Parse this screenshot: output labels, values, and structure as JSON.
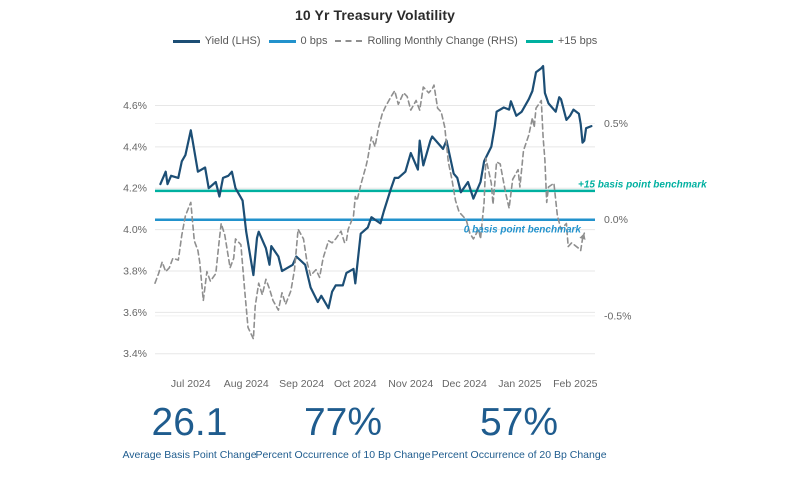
{
  "title": "10 Yr Treasury Volatility",
  "legend": {
    "items": [
      {
        "label": "Yield (LHS)",
        "color": "#1c4e75",
        "style": "solid"
      },
      {
        "label": "0 bps",
        "color": "#2292cc",
        "style": "solid"
      },
      {
        "label": "Rolling Monthly Change (RHS)",
        "color": "#8f8f8f",
        "style": "dashed"
      },
      {
        "label": "+15 bps",
        "color": "#00b0a0",
        "style": "solid"
      }
    ]
  },
  "annotations": {
    "plus15_label": "+15 basis point benchmark",
    "zero_label": "0 basis point benchmark"
  },
  "stats": [
    {
      "value": "26.1",
      "label": "Average Basis Point Change"
    },
    {
      "value": "77%",
      "label": "Percent Occurrence of 10 Bp Change"
    },
    {
      "value": "57%",
      "label": "Percent Occurrence of 20 Bp Change"
    }
  ],
  "colors": {
    "yield_line": "#1c4e75",
    "zero_bps_line": "#2292cc",
    "rolling_change_line": "#8f8f8f",
    "plus15_line": "#00b0a0",
    "stat_text": "#1f5c8e",
    "axis_text": "#666666",
    "grid": "#e7e7e7"
  },
  "chart_data": {
    "type": "line",
    "title": "10 Yr Treasury Volatility",
    "grid": "horizontal",
    "legend_position": "top",
    "x_domain": [
      "2024-06-11",
      "2025-02-12"
    ],
    "x_ticks": [
      {
        "date": "2024-07-01",
        "label": "Jul 2024"
      },
      {
        "date": "2024-08-01",
        "label": "Aug 2024"
      },
      {
        "date": "2024-09-01",
        "label": "Sep 2024"
      },
      {
        "date": "2024-10-01",
        "label": "Oct 2024"
      },
      {
        "date": "2024-11-01",
        "label": "Nov 2024"
      },
      {
        "date": "2024-12-01",
        "label": "Dec 2024"
      },
      {
        "date": "2025-01-01",
        "label": "Jan 2025"
      },
      {
        "date": "2025-02-01",
        "label": "Feb 2025"
      }
    ],
    "left_axis": {
      "title": "Yield",
      "min": 3.36,
      "max": 4.81,
      "tick_values": [
        3.4,
        3.6,
        3.8,
        4.0,
        4.2,
        4.4,
        4.6
      ],
      "ticks": [
        "3.4%",
        "3.6%",
        "3.8%",
        "4.0%",
        "4.2%",
        "4.4%",
        "4.6%"
      ]
    },
    "right_axis": {
      "title": "Rolling Monthly Change",
      "min": -0.74,
      "max": 0.82,
      "tick_values": [
        0.5,
        0.0,
        -0.5
      ],
      "ticks": [
        "0.5%",
        "0.0%",
        "-0.5%"
      ]
    },
    "benchmarks": [
      {
        "name": "+15 bps",
        "axis": "right",
        "value": 0.15,
        "color": "#00b0a0",
        "label": "+15 basis point benchmark"
      },
      {
        "name": "0 bps",
        "axis": "right",
        "value": 0.0,
        "color": "#2292cc",
        "label": "0 basis point benchmark"
      }
    ],
    "series": [
      {
        "name": "Yield (LHS)",
        "axis": "left",
        "line": "solid",
        "color": "#1c4e75",
        "points": [
          [
            "2024-06-14",
            4.22
          ],
          [
            "2024-06-17",
            4.28
          ],
          [
            "2024-06-18",
            4.22
          ],
          [
            "2024-06-20",
            4.26
          ],
          [
            "2024-06-24",
            4.25
          ],
          [
            "2024-06-26",
            4.33
          ],
          [
            "2024-06-28",
            4.36
          ],
          [
            "2024-07-01",
            4.48
          ],
          [
            "2024-07-02",
            4.43
          ],
          [
            "2024-07-05",
            4.28
          ],
          [
            "2024-07-09",
            4.3
          ],
          [
            "2024-07-11",
            4.2
          ],
          [
            "2024-07-15",
            4.23
          ],
          [
            "2024-07-17",
            4.16
          ],
          [
            "2024-07-19",
            4.25
          ],
          [
            "2024-07-22",
            4.26
          ],
          [
            "2024-07-24",
            4.28
          ],
          [
            "2024-07-26",
            4.2
          ],
          [
            "2024-07-30",
            4.14
          ],
          [
            "2024-08-01",
            3.99
          ],
          [
            "2024-08-05",
            3.78
          ],
          [
            "2024-08-07",
            3.96
          ],
          [
            "2024-08-08",
            3.99
          ],
          [
            "2024-08-12",
            3.91
          ],
          [
            "2024-08-14",
            3.83
          ],
          [
            "2024-08-15",
            3.92
          ],
          [
            "2024-08-19",
            3.87
          ],
          [
            "2024-08-21",
            3.8
          ],
          [
            "2024-08-23",
            3.81
          ],
          [
            "2024-08-27",
            3.83
          ],
          [
            "2024-08-29",
            3.87
          ],
          [
            "2024-09-03",
            3.83
          ],
          [
            "2024-09-06",
            3.72
          ],
          [
            "2024-09-10",
            3.65
          ],
          [
            "2024-09-12",
            3.68
          ],
          [
            "2024-09-16",
            3.62
          ],
          [
            "2024-09-18",
            3.7
          ],
          [
            "2024-09-20",
            3.73
          ],
          [
            "2024-09-24",
            3.73
          ],
          [
            "2024-09-26",
            3.79
          ],
          [
            "2024-09-30",
            3.81
          ],
          [
            "2024-10-01",
            3.74
          ],
          [
            "2024-10-04",
            3.98
          ],
          [
            "2024-10-08",
            4.01
          ],
          [
            "2024-10-10",
            4.06
          ],
          [
            "2024-10-15",
            4.03
          ],
          [
            "2024-10-17",
            4.09
          ],
          [
            "2024-10-21",
            4.2
          ],
          [
            "2024-10-23",
            4.25
          ],
          [
            "2024-10-25",
            4.25
          ],
          [
            "2024-10-29",
            4.28
          ],
          [
            "2024-11-01",
            4.37
          ],
          [
            "2024-11-05",
            4.29
          ],
          [
            "2024-11-06",
            4.43
          ],
          [
            "2024-11-08",
            4.31
          ],
          [
            "2024-11-12",
            4.43
          ],
          [
            "2024-11-13",
            4.45
          ],
          [
            "2024-11-15",
            4.43
          ],
          [
            "2024-11-19",
            4.39
          ],
          [
            "2024-11-21",
            4.43
          ],
          [
            "2024-11-25",
            4.27
          ],
          [
            "2024-11-27",
            4.25
          ],
          [
            "2024-11-29",
            4.18
          ],
          [
            "2024-12-03",
            4.23
          ],
          [
            "2024-12-06",
            4.15
          ],
          [
            "2024-12-10",
            4.23
          ],
          [
            "2024-12-12",
            4.33
          ],
          [
            "2024-12-16",
            4.4
          ],
          [
            "2024-12-18",
            4.5
          ],
          [
            "2024-12-19",
            4.57
          ],
          [
            "2024-12-23",
            4.59
          ],
          [
            "2024-12-26",
            4.58
          ],
          [
            "2024-12-27",
            4.62
          ],
          [
            "2024-12-30",
            4.55
          ],
          [
            "2025-01-02",
            4.57
          ],
          [
            "2025-01-06",
            4.63
          ],
          [
            "2025-01-08",
            4.67
          ],
          [
            "2025-01-10",
            4.76
          ],
          [
            "2025-01-13",
            4.78
          ],
          [
            "2025-01-14",
            4.79
          ],
          [
            "2025-01-15",
            4.66
          ],
          [
            "2025-01-17",
            4.61
          ],
          [
            "2025-01-21",
            4.57
          ],
          [
            "2025-01-23",
            4.64
          ],
          [
            "2025-01-24",
            4.63
          ],
          [
            "2025-01-27",
            4.53
          ],
          [
            "2025-01-29",
            4.55
          ],
          [
            "2025-01-31",
            4.58
          ],
          [
            "2025-02-03",
            4.56
          ],
          [
            "2025-02-04",
            4.51
          ],
          [
            "2025-02-05",
            4.42
          ],
          [
            "2025-02-06",
            4.43
          ],
          [
            "2025-02-07",
            4.49
          ],
          [
            "2025-02-10",
            4.5
          ]
        ]
      },
      {
        "name": "Rolling Monthly Change (RHS)",
        "axis": "right",
        "line": "dashed",
        "color": "#8f8f8f",
        "end_arrow": true,
        "points": [
          [
            "2024-06-11",
            -0.33
          ],
          [
            "2024-06-13",
            -0.28
          ],
          [
            "2024-06-15",
            -0.22
          ],
          [
            "2024-06-17",
            -0.27
          ],
          [
            "2024-06-19",
            -0.25
          ],
          [
            "2024-06-21",
            -0.2
          ],
          [
            "2024-06-24",
            -0.21
          ],
          [
            "2024-06-26",
            -0.08
          ],
          [
            "2024-06-28",
            0.02
          ],
          [
            "2024-07-01",
            0.09
          ],
          [
            "2024-07-03",
            -0.11
          ],
          [
            "2024-07-05",
            -0.16
          ],
          [
            "2024-07-06",
            -0.22
          ],
          [
            "2024-07-08",
            -0.42
          ],
          [
            "2024-07-10",
            -0.27
          ],
          [
            "2024-07-12",
            -0.32
          ],
          [
            "2024-07-15",
            -0.28
          ],
          [
            "2024-07-17",
            -0.1
          ],
          [
            "2024-07-18",
            -0.02
          ],
          [
            "2024-07-20",
            -0.08
          ],
          [
            "2024-07-23",
            -0.25
          ],
          [
            "2024-07-25",
            -0.2
          ],
          [
            "2024-07-26",
            -0.1
          ],
          [
            "2024-07-29",
            -0.13
          ],
          [
            "2024-07-31",
            -0.35
          ],
          [
            "2024-08-02",
            -0.56
          ],
          [
            "2024-08-05",
            -0.62
          ],
          [
            "2024-08-06",
            -0.45
          ],
          [
            "2024-08-08",
            -0.33
          ],
          [
            "2024-08-10",
            -0.39
          ],
          [
            "2024-08-12",
            -0.31
          ],
          [
            "2024-08-14",
            -0.36
          ],
          [
            "2024-08-16",
            -0.42
          ],
          [
            "2024-08-19",
            -0.47
          ],
          [
            "2024-08-21",
            -0.38
          ],
          [
            "2024-08-23",
            -0.44
          ],
          [
            "2024-08-26",
            -0.37
          ],
          [
            "2024-08-28",
            -0.26
          ],
          [
            "2024-08-30",
            -0.05
          ],
          [
            "2024-09-02",
            -0.1
          ],
          [
            "2024-09-04",
            -0.22
          ],
          [
            "2024-09-06",
            -0.29
          ],
          [
            "2024-09-09",
            -0.26
          ],
          [
            "2024-09-11",
            -0.3
          ],
          [
            "2024-09-13",
            -0.2
          ],
          [
            "2024-09-16",
            -0.11
          ],
          [
            "2024-09-18",
            -0.12
          ],
          [
            "2024-09-20",
            -0.1
          ],
          [
            "2024-09-23",
            -0.06
          ],
          [
            "2024-09-25",
            -0.12
          ],
          [
            "2024-09-26",
            -0.11
          ],
          [
            "2024-09-27",
            -0.05
          ],
          [
            "2024-09-30",
            0.02
          ],
          [
            "2024-10-01",
            0.12
          ],
          [
            "2024-10-02",
            0.1
          ],
          [
            "2024-10-04",
            0.18
          ],
          [
            "2024-10-07",
            0.28
          ],
          [
            "2024-10-08",
            0.32
          ],
          [
            "2024-10-10",
            0.43
          ],
          [
            "2024-10-12",
            0.38
          ],
          [
            "2024-10-14",
            0.48
          ],
          [
            "2024-10-16",
            0.55
          ],
          [
            "2024-10-18",
            0.59
          ],
          [
            "2024-10-21",
            0.64
          ],
          [
            "2024-10-23",
            0.67
          ],
          [
            "2024-10-25",
            0.6
          ],
          [
            "2024-10-28",
            0.66
          ],
          [
            "2024-10-30",
            0.64
          ],
          [
            "2024-11-01",
            0.57
          ],
          [
            "2024-11-04",
            0.62
          ],
          [
            "2024-11-06",
            0.57
          ],
          [
            "2024-11-08",
            0.69
          ],
          [
            "2024-11-11",
            0.66
          ],
          [
            "2024-11-13",
            0.68
          ],
          [
            "2024-11-14",
            0.7
          ],
          [
            "2024-11-16",
            0.58
          ],
          [
            "2024-11-18",
            0.56
          ],
          [
            "2024-11-20",
            0.48
          ],
          [
            "2024-11-22",
            0.3
          ],
          [
            "2024-11-24",
            0.21
          ],
          [
            "2024-11-26",
            0.1
          ],
          [
            "2024-11-28",
            0.04
          ],
          [
            "2024-12-02",
            0.0
          ],
          [
            "2024-12-04",
            -0.07
          ],
          [
            "2024-12-06",
            -0.1
          ],
          [
            "2024-12-09",
            -0.05
          ],
          [
            "2024-12-10",
            -0.1
          ],
          [
            "2024-12-12",
            0.09
          ],
          [
            "2024-12-13",
            0.32
          ],
          [
            "2024-12-16",
            0.19
          ],
          [
            "2024-12-17",
            0.08
          ],
          [
            "2024-12-19",
            0.3
          ],
          [
            "2024-12-21",
            0.29
          ],
          [
            "2024-12-24",
            0.14
          ],
          [
            "2024-12-26",
            0.06
          ],
          [
            "2024-12-28",
            0.21
          ],
          [
            "2024-12-31",
            0.26
          ],
          [
            "2025-01-01",
            0.17
          ],
          [
            "2025-01-03",
            0.36
          ],
          [
            "2025-01-06",
            0.44
          ],
          [
            "2025-01-08",
            0.53
          ],
          [
            "2025-01-09",
            0.48
          ],
          [
            "2025-01-10",
            0.58
          ],
          [
            "2025-01-13",
            0.62
          ],
          [
            "2025-01-14",
            0.43
          ],
          [
            "2025-01-15",
            0.31
          ],
          [
            "2025-01-16",
            0.09
          ],
          [
            "2025-01-17",
            0.17
          ],
          [
            "2025-01-20",
            0.19
          ],
          [
            "2025-01-22",
            0.02
          ],
          [
            "2025-01-24",
            -0.05
          ],
          [
            "2025-01-27",
            -0.02
          ],
          [
            "2025-01-28",
            -0.14
          ],
          [
            "2025-01-30",
            -0.12
          ],
          [
            "2025-02-03",
            -0.15
          ],
          [
            "2025-02-04",
            -0.16
          ],
          [
            "2025-02-05",
            -0.1
          ],
          [
            "2025-02-06",
            -0.07
          ]
        ]
      }
    ]
  }
}
